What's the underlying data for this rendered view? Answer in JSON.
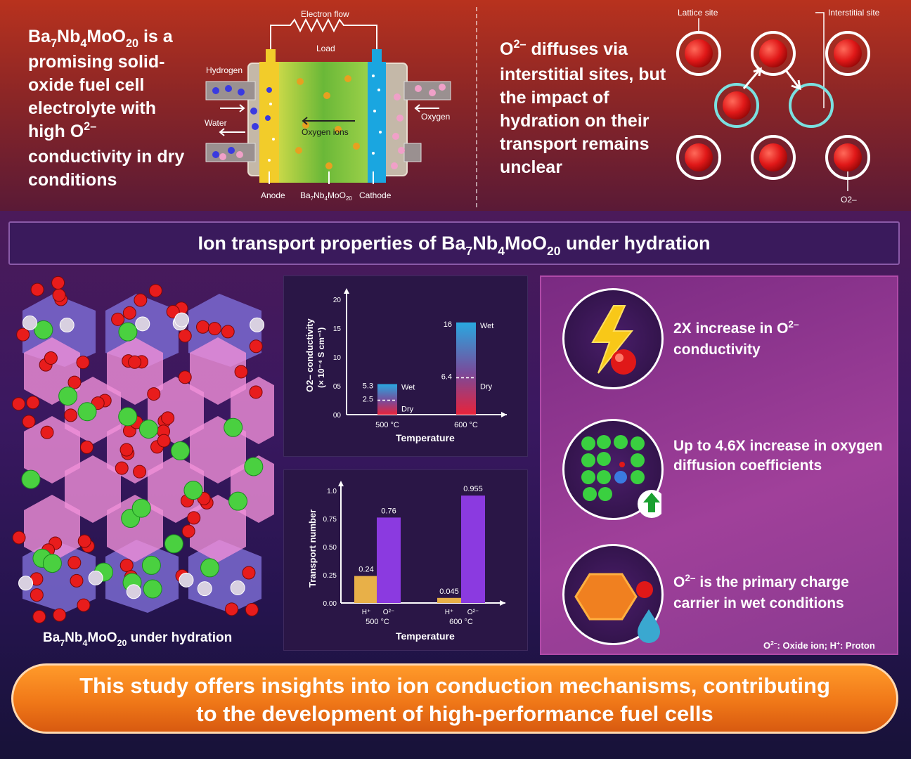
{
  "intro": {
    "formula": {
      "p1": "Ba",
      "s1": "7",
      "p2": "Nb",
      "s2": "4",
      "p3": "MoO",
      "s3": "20"
    },
    "text": " is a promising solid-oxide fuel cell electrolyte with high O",
    "sup": "2–",
    "tail": " conductivity in dry conditions"
  },
  "fuel_cell": {
    "electron_flow": "Electron flow",
    "load": "Load",
    "hydrogen": "Hydrogen",
    "water": "Water",
    "oxygen": "Oxygen",
    "oxygen_ions": "Oxygen ions",
    "anode": "Anode",
    "cathode": "Cathode",
    "formula": {
      "p1": "Ba",
      "s1": "7",
      "p2": "Nb",
      "s2": "4",
      "p3": "MoO",
      "s3": "20"
    }
  },
  "diffusion": {
    "o": "O",
    "sup": "2–",
    "text": " diffuses via interstitial sites, but the impact of hydration on their transport remains unclear",
    "lattice_site": "Lattice site",
    "interstitial_site": "Interstitial site",
    "ion_label": "O2–"
  },
  "banner": {
    "pre": "Ion transport properties of ",
    "formula": {
      "p1": "Ba",
      "s1": "7",
      "p2": "Nb",
      "s2": "4",
      "p3": "MoO",
      "s3": "20"
    },
    "post": " under hydration"
  },
  "structure_label": {
    "formula": {
      "p1": "Ba",
      "s1": "7",
      "p2": "Nb",
      "s2": "4",
      "p3": "MoO",
      "s3": "20"
    },
    "post": " under hydration"
  },
  "chart_data": [
    {
      "type": "bar",
      "ylabel_line1": "O2– conductivity",
      "ylabel_line2": "(× 10⁻⁴ S cm⁻¹)",
      "xlabel": "Temperature",
      "ylim": [
        0,
        20
      ],
      "yticks": [
        "00",
        "05",
        "10",
        "15",
        "20"
      ],
      "categories": [
        "500 °C",
        "600 °C"
      ],
      "series": [
        {
          "name": "Wet",
          "values": [
            5.3,
            16
          ]
        },
        {
          "name": "Dry",
          "values": [
            2.5,
            6.4
          ]
        }
      ],
      "labels": {
        "wet": [
          "5.3",
          "16"
        ],
        "dry": [
          "2.5",
          "6.4"
        ]
      }
    },
    {
      "type": "bar",
      "ylabel": "Transport number",
      "xlabel": "Temperature",
      "ylim": [
        0,
        1.0
      ],
      "yticks": [
        "0.00",
        "0.25",
        "0.50",
        "0.75",
        "1.0"
      ],
      "categories": [
        "500 °C",
        "600 °C"
      ],
      "bar_labels": [
        "H⁺",
        "O²⁻"
      ],
      "series": [
        {
          "name": "H⁺",
          "values": [
            0.24,
            0.045
          ]
        },
        {
          "name": "O²⁻",
          "values": [
            0.76,
            0.955
          ]
        }
      ],
      "labels": {
        "h": [
          "0.24",
          "0.045"
        ],
        "o": [
          "0.76",
          "0.955"
        ]
      }
    }
  ],
  "features": [
    {
      "text_a": "2X increase in O",
      "sup": "2–",
      "text_b": " conductivity"
    },
    {
      "text": "Up to 4.6X increase in oxygen diffusion coefficients"
    },
    {
      "text_a": "O",
      "sup": "2–",
      "text_b": " is the primary charge carrier in wet conditions"
    }
  ],
  "legend": {
    "o": "O",
    "o_sup": "2–",
    "o_text": ": Oxide ion; H",
    "h_sup": "+",
    "h_text": ": Proton"
  },
  "conclusion": {
    "line1": "This study offers insights into ion conduction mechanisms, contributing",
    "line2": "to the development of high-performance fuel cells"
  },
  "colors": {
    "wet": "#29a8e0",
    "dry": "#e8233a",
    "o_bar": "#8b3ae0",
    "h_bar": "#e8b048",
    "accent": "#f07818"
  }
}
